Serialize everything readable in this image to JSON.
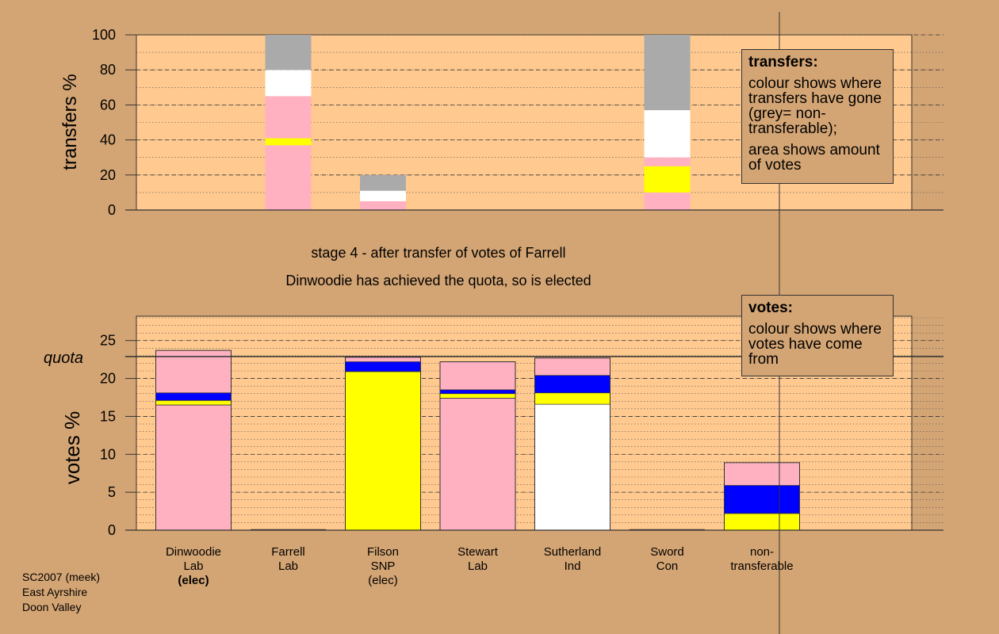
{
  "colors": {
    "background": "#d4a574",
    "plot_bg": "#ffc98f",
    "Lab": "#ffb1c1",
    "SNP": "#ffff00",
    "Ind": "#ffffff",
    "Con": "#0000ff",
    "nontransferable": "#aaaaaa"
  },
  "captions": {
    "stage": "stage 4 - after transfer of votes of Farrell",
    "elected": "Dinwoodie has achieved the quota, so is elected"
  },
  "transfers_legend": {
    "title": "transfers:",
    "line1": "colour shows where transfers have gone (grey= non-transferable);",
    "line2": "area shows amount of votes"
  },
  "votes_legend": {
    "title": "votes:",
    "line1": "colour shows where votes have come from"
  },
  "candidates": [
    {
      "name": "Dinwoodie",
      "party": "Lab",
      "status": "(elec)"
    },
    {
      "name": "Farrell",
      "party": "Lab",
      "status": ""
    },
    {
      "name": "Filson",
      "party": "SNP",
      "status": "(elec)"
    },
    {
      "name": "Stewart",
      "party": "Lab",
      "status": ""
    },
    {
      "name": "Sutherland",
      "party": "Ind",
      "status": ""
    },
    {
      "name": "Sword",
      "party": "Con",
      "status": ""
    },
    {
      "name": "non-\ntransferable",
      "party": "",
      "status": ""
    }
  ],
  "footer": {
    "line1": "SC2007 (meek)",
    "line2": "East Ayrshire",
    "line3": "Doon Valley"
  },
  "chart_data": [
    {
      "type": "bar",
      "stacked": true,
      "ylabel": "transfers %",
      "ylim": [
        0,
        100
      ],
      "yticks": [
        0,
        20,
        40,
        60,
        80,
        100
      ],
      "columns": [
        {
          "x": 1,
          "segments": [
            {
              "color": "Lab",
              "value": 37
            },
            {
              "color": "SNP",
              "value": 4
            },
            {
              "color": "Lab",
              "value": 24
            },
            {
              "color": "Ind",
              "value": 15
            },
            {
              "color": "nontransferable",
              "value": 20
            }
          ]
        },
        {
          "x": 2,
          "segments": [
            {
              "color": "Lab",
              "value": 5
            },
            {
              "color": "Ind",
              "value": 6
            },
            {
              "color": "nontransferable",
              "value": 9
            }
          ]
        },
        {
          "x": 5,
          "segments": [
            {
              "color": "Lab",
              "value": 10
            },
            {
              "color": "SNP",
              "value": 15
            },
            {
              "color": "Lab",
              "value": 5
            },
            {
              "color": "Ind",
              "value": 27
            },
            {
              "color": "nontransferable",
              "value": 43
            }
          ]
        }
      ]
    },
    {
      "type": "bar",
      "stacked": true,
      "ylabel": "votes %",
      "ylim": [
        0,
        28
      ],
      "yticks": [
        0,
        5,
        10,
        15,
        20,
        25
      ],
      "quota": {
        "label": "quota",
        "value": 22.9
      },
      "columns": [
        {
          "x": 0,
          "segments": [
            {
              "color": "Lab",
              "value": 16.5
            },
            {
              "color": "SNP",
              "value": 0.6
            },
            {
              "color": "Con",
              "value": 1.0
            },
            {
              "color": "Lab",
              "value": 5.6
            }
          ]
        },
        {
          "x": 1,
          "segments": []
        },
        {
          "x": 2,
          "segments": [
            {
              "color": "SNP",
              "value": 20.9
            },
            {
              "color": "Con",
              "value": 1.3
            },
            {
              "color": "Lab",
              "value": 0.6
            }
          ]
        },
        {
          "x": 3,
          "segments": [
            {
              "color": "Lab",
              "value": 17.4
            },
            {
              "color": "SNP",
              "value": 0.6
            },
            {
              "color": "Con",
              "value": 0.5
            },
            {
              "color": "Lab",
              "value": 3.7
            }
          ]
        },
        {
          "x": 4,
          "segments": [
            {
              "color": "Ind",
              "value": 16.6
            },
            {
              "color": "SNP",
              "value": 1.5
            },
            {
              "color": "Con",
              "value": 2.3
            },
            {
              "color": "Lab",
              "value": 2.3
            }
          ]
        },
        {
          "x": 5,
          "segments": []
        },
        {
          "x": 6,
          "segments": [
            {
              "color": "SNP",
              "value": 2.2
            },
            {
              "color": "Con",
              "value": 3.7
            },
            {
              "color": "Lab",
              "value": 3.0
            }
          ]
        }
      ]
    }
  ]
}
